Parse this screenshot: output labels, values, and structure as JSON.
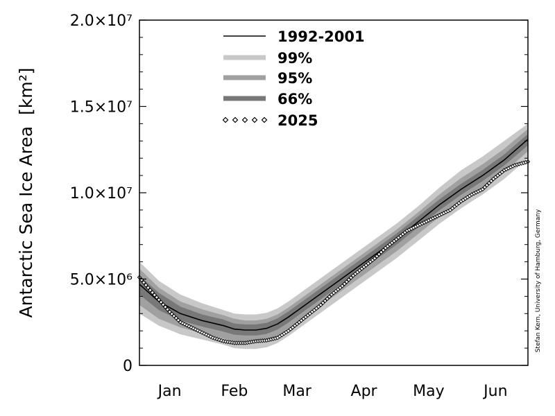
{
  "chart_data": {
    "type": "line",
    "ylabel": "Antarctic Sea Ice Area",
    "ylabel_unit": "[km²]",
    "ylim": [
      0,
      20000000
    ],
    "y_ticks": [
      {
        "value": 0,
        "label": "0"
      },
      {
        "value": 5000000,
        "label": "5.0×10⁶"
      },
      {
        "value": 10000000,
        "label": "1.0×10⁷"
      },
      {
        "value": 15000000,
        "label": "1.5×10⁷"
      },
      {
        "value": 20000000,
        "label": "2.0×10⁷"
      }
    ],
    "x_range_days": [
      1,
      181
    ],
    "x_ticks": [
      {
        "day": 15,
        "label": "Jan"
      },
      {
        "day": 45,
        "label": "Feb"
      },
      {
        "day": 74,
        "label": "Mar"
      },
      {
        "day": 105,
        "label": "Apr"
      },
      {
        "day": 135,
        "label": "May"
      },
      {
        "day": 166,
        "label": "Jun"
      }
    ],
    "colors": {
      "band_99": "#c8c8c8",
      "band_95": "#a0a0a0",
      "band_66": "#787878",
      "mean_line": "#000000",
      "marker": "#000000"
    },
    "legend": {
      "position": "top-center",
      "items": [
        {
          "label": "1992-2001",
          "kind": "line"
        },
        {
          "label": "99%",
          "kind": "band99"
        },
        {
          "label": "95%",
          "kind": "band95"
        },
        {
          "label": "66%",
          "kind": "band66"
        },
        {
          "label": "2025",
          "kind": "diamonds"
        }
      ]
    },
    "series": [
      {
        "name": "1992-2001",
        "x": [
          1,
          10,
          20,
          30,
          40,
          45,
          50,
          55,
          60,
          65,
          70,
          80,
          90,
          100,
          110,
          120,
          130,
          140,
          150,
          160,
          170,
          181
        ],
        "y": [
          4700000,
          3700000,
          3000000,
          2600000,
          2300000,
          2100000,
          2050000,
          2050000,
          2150000,
          2400000,
          2800000,
          3700000,
          4600000,
          5500000,
          6400000,
          7300000,
          8300000,
          9300000,
          10200000,
          11000000,
          11900000,
          13100000
        ]
      },
      {
        "name": "2025",
        "x": [
          1,
          5,
          10,
          15,
          20,
          25,
          30,
          35,
          40,
          45,
          50,
          55,
          60,
          65,
          70,
          75,
          80,
          85,
          90,
          95,
          100,
          105,
          110,
          115,
          120,
          125,
          130,
          135,
          140,
          145,
          150,
          155,
          160,
          165,
          170,
          175,
          181
        ],
        "y": [
          5100000,
          4500000,
          3800000,
          3100000,
          2500000,
          2200000,
          1900000,
          1600000,
          1400000,
          1300000,
          1300000,
          1400000,
          1450000,
          1600000,
          2000000,
          2500000,
          3000000,
          3500000,
          4100000,
          4600000,
          5200000,
          5700000,
          6200000,
          6800000,
          7300000,
          7800000,
          8100000,
          8400000,
          8700000,
          9000000,
          9500000,
          9900000,
          10200000,
          10800000,
          11300000,
          11600000,
          11800000
        ]
      }
    ],
    "bands": [
      {
        "name": "99%",
        "x": [
          1,
          10,
          20,
          30,
          40,
          45,
          50,
          55,
          60,
          65,
          70,
          80,
          90,
          100,
          110,
          120,
          130,
          140,
          150,
          160,
          170,
          181
        ],
        "lower": [
          3000000,
          2300000,
          1800000,
          1500000,
          1200000,
          1000000,
          950000,
          950000,
          1050000,
          1300000,
          1700000,
          2600000,
          3500000,
          4400000,
          5300000,
          6200000,
          7200000,
          8200000,
          9100000,
          9900000,
          10800000,
          12000000
        ],
        "upper": [
          6000000,
          4900000,
          4100000,
          3600000,
          3200000,
          3000000,
          2950000,
          2950000,
          3050000,
          3300000,
          3700000,
          4600000,
          5500000,
          6400000,
          7300000,
          8200000,
          9200000,
          10300000,
          11300000,
          12100000,
          13000000,
          14000000
        ]
      },
      {
        "name": "95%",
        "x": [
          1,
          10,
          20,
          30,
          40,
          45,
          50,
          55,
          60,
          65,
          70,
          80,
          90,
          100,
          110,
          120,
          130,
          140,
          150,
          160,
          170,
          181
        ],
        "lower": [
          3500000,
          2700000,
          2200000,
          1850000,
          1550000,
          1400000,
          1350000,
          1350000,
          1450000,
          1700000,
          2100000,
          3000000,
          3900000,
          4800000,
          5700000,
          6600000,
          7600000,
          8600000,
          9500000,
          10300000,
          11200000,
          12400000
        ],
        "upper": [
          5600000,
          4500000,
          3700000,
          3250000,
          2900000,
          2700000,
          2600000,
          2600000,
          2700000,
          2950000,
          3350000,
          4250000,
          5150000,
          6050000,
          6950000,
          7850000,
          8850000,
          9900000,
          10850000,
          11650000,
          12550000,
          13700000
        ]
      },
      {
        "name": "66%",
        "x": [
          1,
          10,
          20,
          30,
          40,
          45,
          50,
          55,
          60,
          65,
          70,
          80,
          90,
          100,
          110,
          120,
          130,
          140,
          150,
          160,
          170,
          181
        ],
        "lower": [
          4100000,
          3200000,
          2600000,
          2250000,
          1950000,
          1780000,
          1730000,
          1730000,
          1830000,
          2080000,
          2480000,
          3380000,
          4280000,
          5180000,
          6080000,
          6980000,
          7980000,
          8980000,
          9880000,
          10680000,
          11580000,
          12750000
        ],
        "upper": [
          5200000,
          4200000,
          3400000,
          2950000,
          2650000,
          2420000,
          2370000,
          2370000,
          2470000,
          2720000,
          3120000,
          4020000,
          4920000,
          5820000,
          6720000,
          7620000,
          8620000,
          9620000,
          10520000,
          11320000,
          12220000,
          13400000
        ]
      }
    ],
    "credit": "Stefan Kern, University of Hamburg, Germany"
  }
}
